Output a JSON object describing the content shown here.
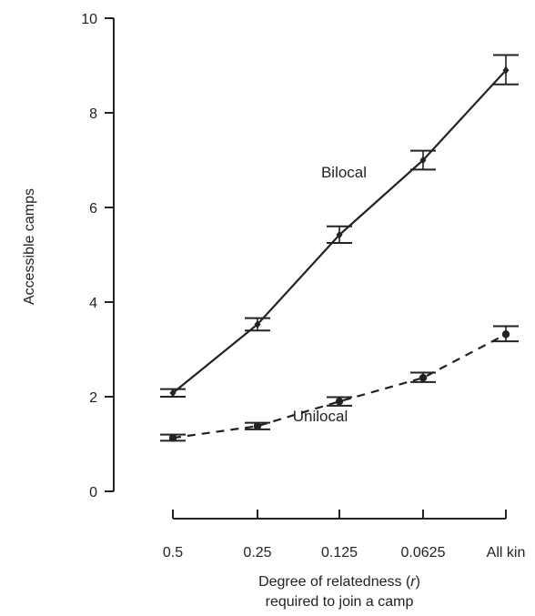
{
  "chart_data": {
    "type": "line",
    "title": "",
    "xlabel_line1": "Degree of relatedness (",
    "xlabel_var": "r",
    "xlabel_line1_end": ")",
    "xlabel_line2": "required to join a camp",
    "ylabel": "Accessible camps",
    "categories": [
      "0.5",
      "0.25",
      "0.125",
      "0.0625",
      "All kin"
    ],
    "ylim": [
      0,
      10
    ],
    "yticks": [
      0,
      2,
      4,
      6,
      8,
      10
    ],
    "grid": false,
    "legend": "none",
    "series": [
      {
        "name": "Bilocal",
        "line_style": "solid",
        "marker": "diamond",
        "color": "#222222",
        "values": [
          2.08,
          3.53,
          5.42,
          7.0,
          8.9
        ],
        "err_low": [
          2.0,
          3.4,
          5.25,
          6.8,
          8.6
        ],
        "err_high": [
          2.16,
          3.66,
          5.6,
          7.2,
          9.22
        ]
      },
      {
        "name": "Unilocal",
        "line_style": "dashed",
        "marker": "circle",
        "color": "#222222",
        "values": [
          1.13,
          1.38,
          1.9,
          2.4,
          3.32
        ],
        "err_low": [
          1.07,
          1.31,
          1.81,
          2.31,
          3.17
        ],
        "err_high": [
          1.2,
          1.45,
          1.99,
          2.51,
          3.49
        ]
      }
    ]
  }
}
